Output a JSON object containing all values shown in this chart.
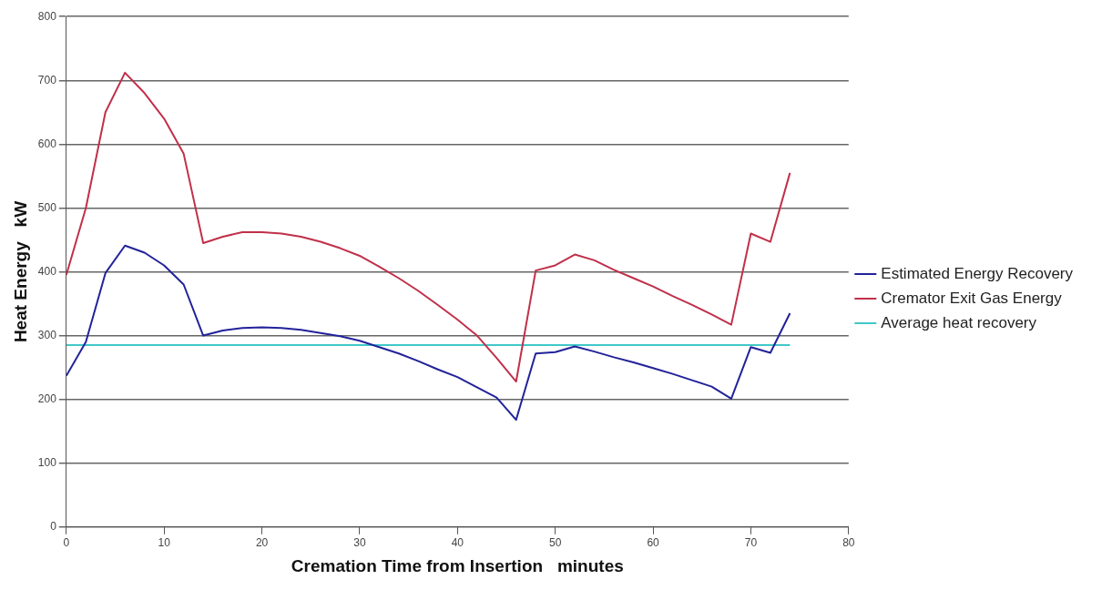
{
  "chart_data": {
    "type": "line",
    "xlabel": "Cremation Time from Insertion   minutes",
    "ylabel": "Heat Energy   kW",
    "x": [
      0,
      2,
      4,
      6,
      8,
      10,
      12,
      14,
      16,
      18,
      20,
      22,
      24,
      26,
      28,
      30,
      32,
      34,
      36,
      38,
      40,
      42,
      44,
      46,
      48,
      50,
      52,
      54,
      56,
      58,
      60,
      62,
      64,
      66,
      68,
      70,
      72,
      74
    ],
    "series": [
      {
        "name": "Estimated Energy Recovery",
        "color": "#22229a",
        "values": [
          237,
          290,
          398,
          441,
          430,
          410,
          380,
          300,
          308,
          312,
          313,
          312,
          309,
          304,
          299,
          292,
          282,
          272,
          260,
          247,
          235,
          219,
          203,
          168,
          272,
          274,
          283,
          275,
          266,
          258,
          249,
          240,
          230,
          220,
          201,
          282,
          273,
          335
        ]
      },
      {
        "name": "Cremator Exit Gas Energy",
        "color": "#c0304a",
        "values": [
          395,
          500,
          650,
          712,
          680,
          640,
          585,
          445,
          455,
          462,
          462,
          460,
          455,
          447,
          437,
          425,
          408,
          390,
          370,
          348,
          325,
          300,
          265,
          228,
          402,
          410,
          427,
          418,
          403,
          390,
          377,
          362,
          348,
          333,
          317,
          460,
          447,
          555
        ]
      },
      {
        "name": "Average heat recovery",
        "color": "#40c8c8",
        "x": [
          0,
          74
        ],
        "values": [
          285,
          285
        ]
      }
    ],
    "xlim": [
      0,
      80
    ],
    "xticks": [
      0,
      10,
      20,
      30,
      40,
      50,
      60,
      70,
      80
    ],
    "ylim": [
      0,
      800
    ],
    "yticks": [
      0,
      100,
      200,
      300,
      400,
      500,
      600,
      700,
      800
    ],
    "grid": "y",
    "legend": "right",
    "marker": "none",
    "line_style": "solid"
  }
}
